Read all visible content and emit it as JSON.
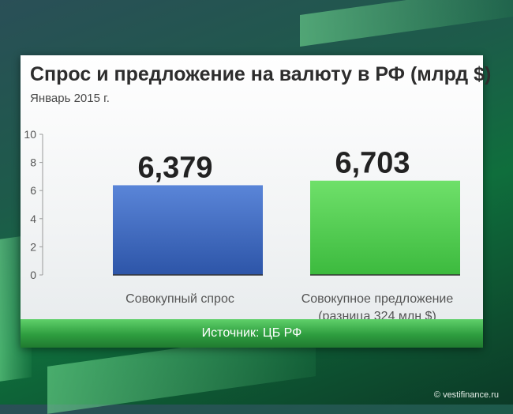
{
  "chart_data": {
    "type": "bar",
    "title": "Спрос и предложение на валюту в РФ (млрд  $)",
    "subtitle": "Январь 2015 г.",
    "categories": [
      "Совокупный спрос",
      "Совокупное предложение (разница 324 млн $)"
    ],
    "category_lines": [
      [
        "Совокупный спрос"
      ],
      [
        "Совокупное предложение",
        "(разница 324 млн $)"
      ]
    ],
    "values": [
      6.379,
      6.703
    ],
    "value_labels": [
      "6,379",
      "6,703"
    ],
    "bar_colors": [
      "#3f68c2",
      "#5ed454"
    ],
    "ylim": [
      0,
      10
    ],
    "yticks": [
      0,
      2,
      4,
      6,
      8,
      10
    ],
    "grid": false
  },
  "footer": {
    "source": "Источник: ЦБ РФ"
  },
  "watermark": "© vestifinance.ru"
}
